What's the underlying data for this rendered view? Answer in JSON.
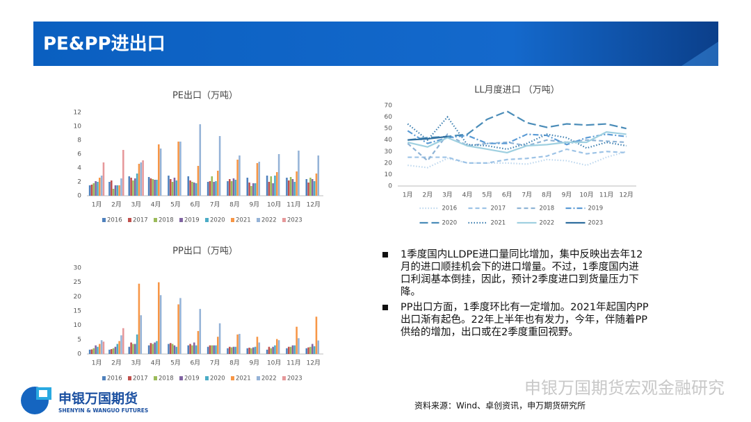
{
  "header": {
    "title": "PE&PP进出口"
  },
  "chart_data": [
    {
      "type": "bar",
      "title": "PE出口（万吨）",
      "categories": [
        "1月",
        "2月",
        "3月",
        "4月",
        "5月",
        "6月",
        "7月",
        "8月",
        "9月",
        "10月",
        "11月",
        "12月"
      ],
      "ylim": [
        0,
        12
      ],
      "yticks": [
        0,
        2,
        4,
        6,
        8,
        10,
        12
      ],
      "grid": false,
      "legend": "bottom",
      "series": [
        {
          "name": "2016",
          "color": "#4f81bd",
          "values": [
            1.5,
            2.0,
            2.8,
            2.7,
            2.9,
            2.8,
            2.0,
            2.1,
            2.6,
            2.9,
            2.6,
            2.4
          ]
        },
        {
          "name": "2017",
          "color": "#c0504d",
          "values": [
            1.6,
            2.2,
            2.6,
            2.5,
            2.4,
            2.2,
            2.1,
            2.4,
            1.9,
            2.0,
            2.2,
            1.9
          ]
        },
        {
          "name": "2018",
          "color": "#9bbb59",
          "values": [
            1.8,
            1.0,
            2.2,
            2.4,
            2.0,
            2.0,
            2.8,
            2.1,
            1.4,
            2.8,
            2.7,
            2.6
          ]
        },
        {
          "name": "2019",
          "color": "#8064a2",
          "values": [
            2.1,
            1.5,
            2.5,
            2.3,
            2.6,
            1.9,
            2.0,
            2.5,
            1.8,
            1.8,
            2.4,
            2.4
          ]
        },
        {
          "name": "2020",
          "color": "#4bacc6",
          "values": [
            2.0,
            1.5,
            3.2,
            2.3,
            2.2,
            1.8,
            2.1,
            2.3,
            1.8,
            2.9,
            2.0,
            2.1
          ]
        },
        {
          "name": "2021",
          "color": "#f79646",
          "values": [
            2.6,
            1.5,
            4.6,
            7.4,
            7.8,
            4.3,
            3.6,
            5.2,
            4.7,
            3.4,
            3.5,
            3.2
          ]
        },
        {
          "name": "2022",
          "color": "#95b3d7",
          "values": [
            2.9,
            2.5,
            4.8,
            6.8,
            7.8,
            10.3,
            8.6,
            5.8,
            4.9,
            6.0,
            6.5,
            5.8
          ]
        },
        {
          "name": "2023",
          "color": "#e6989a",
          "values": [
            4.8,
            6.6,
            5.1,
            null,
            null,
            null,
            null,
            null,
            null,
            null,
            null,
            null
          ]
        }
      ]
    },
    {
      "type": "bar",
      "title": "PP出口（万吨）",
      "categories": [
        "1月",
        "2月",
        "3月",
        "4月",
        "5月",
        "6月",
        "7月",
        "8月",
        "9月",
        "10月",
        "11月",
        "12月"
      ],
      "ylim": [
        0,
        30
      ],
      "yticks": [
        0,
        5,
        10,
        15,
        20,
        25,
        30
      ],
      "grid": false,
      "legend": "bottom",
      "series": [
        {
          "name": "2016",
          "color": "#4f81bd",
          "values": [
            1.5,
            1.5,
            2.5,
            3.0,
            3.5,
            3.0,
            2.5,
            2.0,
            2.0,
            1.5,
            2.0,
            2.0
          ]
        },
        {
          "name": "2017",
          "color": "#c0504d",
          "values": [
            1.6,
            1.7,
            4.0,
            3.8,
            3.8,
            3.5,
            3.0,
            2.5,
            2.2,
            2.5,
            2.5,
            2.3
          ]
        },
        {
          "name": "2018",
          "color": "#9bbb59",
          "values": [
            2.0,
            2.0,
            3.5,
            3.5,
            3.5,
            3.0,
            3.0,
            2.3,
            2.0,
            2.0,
            2.5,
            2.5
          ]
        },
        {
          "name": "2019",
          "color": "#8064a2",
          "values": [
            3.0,
            2.5,
            3.5,
            4.0,
            3.0,
            4.0,
            3.0,
            2.5,
            2.3,
            2.5,
            3.0,
            3.5
          ]
        },
        {
          "name": "2020",
          "color": "#4bacc6",
          "values": [
            2.5,
            3.5,
            6.8,
            4.5,
            2.5,
            3.0,
            3.0,
            2.5,
            2.5,
            3.0,
            3.0,
            2.7
          ]
        },
        {
          "name": "2021",
          "color": "#f79646",
          "values": [
            3.5,
            4.5,
            24.5,
            25.0,
            17.3,
            8.0,
            6.0,
            6.8,
            6.0,
            5.2,
            9.5,
            13.0
          ]
        },
        {
          "name": "2022",
          "color": "#95b3d7",
          "values": [
            4.8,
            6.5,
            13.5,
            20.5,
            19.5,
            15.7,
            10.7,
            7.0,
            4.0,
            4.8,
            5.5,
            4.7
          ]
        },
        {
          "name": "2023",
          "color": "#e6989a",
          "values": [
            4.3,
            9.0,
            null,
            null,
            null,
            null,
            null,
            null,
            null,
            null,
            null,
            null
          ]
        }
      ]
    },
    {
      "type": "line",
      "title": "LL月度进口 （万吨）",
      "categories": [
        "1月",
        "2月",
        "3月",
        "4月",
        "5月",
        "6月",
        "7月",
        "8月",
        "9月",
        "10月",
        "11月",
        "12月"
      ],
      "ylim": [
        0,
        70
      ],
      "yticks": [
        0,
        10,
        20,
        30,
        40,
        50,
        60,
        70
      ],
      "grid": false,
      "legend": "bottom",
      "series": [
        {
          "name": "2016",
          "color": "#bdd7ee",
          "dash": "dotted",
          "values": [
            18,
            16,
            24,
            20,
            20,
            20,
            19,
            23,
            22,
            18,
            25,
            30
          ]
        },
        {
          "name": "2017",
          "color": "#9dc3e6",
          "dash": "dashed",
          "values": [
            25,
            25,
            25,
            20,
            20,
            23,
            24,
            26,
            32,
            28,
            30,
            29
          ]
        },
        {
          "name": "2018",
          "color": "#8fb4d6",
          "dash": "dashed",
          "values": [
            37,
            22,
            45,
            35,
            37,
            38,
            35,
            40,
            38,
            40,
            39,
            38
          ]
        },
        {
          "name": "2019",
          "color": "#5b9bd5",
          "dash": "dashdot",
          "values": [
            48,
            37,
            42,
            44,
            37,
            37,
            45,
            44,
            36,
            42,
            45,
            43
          ]
        },
        {
          "name": "2020",
          "color": "#4a8cb8",
          "dash": "longdash",
          "values": [
            40,
            42,
            43,
            45,
            58,
            65,
            55,
            51,
            54,
            53,
            54,
            50
          ]
        },
        {
          "name": "2021",
          "color": "#3d7fb0",
          "dash": "dotted",
          "values": [
            54,
            40,
            60,
            36,
            35,
            32,
            37,
            45,
            42,
            33,
            38,
            35
          ]
        },
        {
          "name": "2022",
          "color": "#9fd0e0",
          "dash": "solid",
          "values": [
            38,
            34,
            42,
            35,
            32,
            29,
            35,
            36,
            38,
            38,
            47,
            45
          ]
        },
        {
          "name": "2023",
          "color": "#2f6e9e",
          "dash": "solid",
          "values": [
            40,
            41,
            43,
            null,
            null,
            null,
            null,
            null,
            null,
            null,
            null,
            null
          ]
        }
      ]
    }
  ],
  "bullets": [
    "1季度国内LLDPE进口量同比增加，集中反映出去年12月的进口顺挂机会下的进口增量。不过，1季度国内进口利润基本倒挂，因此，预计2季度进口到货量压力下降。",
    "PP出口方面，1季度环比有一定增加。2021年起国内PP出口渐有起色。22年上半年也有发力，今年，伴随着PP供给的增加，出口或在2季度重回视野。"
  ],
  "logo": {
    "name": "申银万国期货",
    "english": "SHENYIN & WANGUO FUTURES"
  },
  "watermark": "申银万国期货宏观金融研究",
  "source": "资料来源：Wind、卓创资讯，申万期货研究所"
}
